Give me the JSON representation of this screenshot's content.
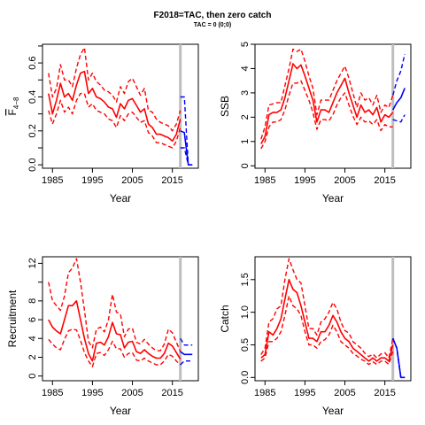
{
  "figure": {
    "title": "F2018=TAC, then zero catch",
    "subtitle": "TAC = 0 (0;0)"
  },
  "colors": {
    "history": "#ff0000",
    "forecast": "#0000ff",
    "marker": "#bebebe"
  },
  "chart_data": [
    {
      "id": "fbar",
      "type": "line",
      "title": "",
      "xlabel": "Year",
      "ylabel_main": "F",
      "ylabel_sub": "4−8",
      "xlim": [
        1982.5,
        2021.5
      ],
      "ylim": [
        -0.02,
        0.71
      ],
      "xticks": [
        1985,
        1995,
        2005,
        2015
      ],
      "yticks": [
        0,
        0.2,
        0.4,
        0.6
      ],
      "ytick_labels": [
        "0.0",
        "0.2",
        "0.4",
        "0.6"
      ],
      "yminor": [
        0.1,
        0.3,
        0.5,
        0.7
      ],
      "vline": 2017,
      "x": [
        1984,
        1985,
        1986,
        1987,
        1988,
        1989,
        1990,
        1991,
        1992,
        1993,
        1994,
        1995,
        1996,
        1997,
        1998,
        1999,
        2000,
        2001,
        2002,
        2003,
        2004,
        2005,
        2006,
        2007,
        2008,
        2009,
        2010,
        2011,
        2012,
        2013,
        2014,
        2015,
        2016,
        2017
      ],
      "series": [
        {
          "role": "estimate",
          "style": "solid",
          "values": [
            0.42,
            0.3,
            0.38,
            0.48,
            0.4,
            0.42,
            0.38,
            0.47,
            0.54,
            0.55,
            0.42,
            0.45,
            0.4,
            0.39,
            0.37,
            0.34,
            0.33,
            0.28,
            0.36,
            0.33,
            0.38,
            0.39,
            0.35,
            0.31,
            0.33,
            0.24,
            0.22,
            0.18,
            0.18,
            0.17,
            0.16,
            0.14,
            0.18,
            0.27
          ]
        },
        {
          "role": "upper",
          "style": "dashed",
          "values": [
            0.54,
            0.4,
            0.45,
            0.59,
            0.5,
            0.5,
            0.46,
            0.57,
            0.65,
            0.69,
            0.5,
            0.54,
            0.49,
            0.47,
            0.44,
            0.43,
            0.41,
            0.37,
            0.46,
            0.42,
            0.49,
            0.51,
            0.46,
            0.41,
            0.45,
            0.32,
            0.31,
            0.27,
            0.25,
            0.24,
            0.23,
            0.2,
            0.24,
            0.32
          ]
        },
        {
          "role": "lower",
          "style": "dashed",
          "values": [
            0.32,
            0.24,
            0.3,
            0.38,
            0.31,
            0.34,
            0.3,
            0.38,
            0.42,
            0.42,
            0.34,
            0.36,
            0.32,
            0.31,
            0.3,
            0.27,
            0.26,
            0.22,
            0.29,
            0.26,
            0.3,
            0.31,
            0.28,
            0.25,
            0.26,
            0.19,
            0.17,
            0.13,
            0.13,
            0.12,
            0.11,
            0.1,
            0.14,
            0.22
          ]
        }
      ],
      "forecast": {
        "x": [
          2017,
          2018,
          2019,
          2020
        ],
        "series": [
          {
            "role": "estimate",
            "style": "solid",
            "values": [
              0.2,
              0.19,
              0,
              0
            ]
          },
          {
            "role": "upper",
            "style": "dashed",
            "values": [
              0.4,
              0.4,
              0,
              0
            ]
          },
          {
            "role": "lower",
            "style": "dashed",
            "values": [
              0.1,
              0.1,
              0,
              0
            ]
          }
        ]
      }
    },
    {
      "id": "ssb",
      "type": "line",
      "title": "",
      "xlabel": "Year",
      "ylabel_main": "SSB",
      "ylabel_sub": "",
      "xlim": [
        1982.5,
        2021.5
      ],
      "ylim": [
        -0.1,
        5.0
      ],
      "xticks": [
        1985,
        1995,
        2005,
        2015
      ],
      "yticks": [
        0,
        1,
        2,
        3,
        4,
        5
      ],
      "ytick_labels": [
        "0",
        "1",
        "2",
        "3",
        "4",
        "5"
      ],
      "yminor": [],
      "vline": 2017,
      "x": [
        1984,
        1985,
        1986,
        1987,
        1988,
        1989,
        1990,
        1991,
        1992,
        1993,
        1994,
        1995,
        1996,
        1997,
        1998,
        1999,
        2000,
        2001,
        2002,
        2003,
        2004,
        2005,
        2006,
        2007,
        2008,
        2009,
        2010,
        2011,
        2012,
        2013,
        2014,
        2015,
        2016,
        2017
      ],
      "series": [
        {
          "role": "estimate",
          "style": "solid",
          "values": [
            0.9,
            1.2,
            2.1,
            2.2,
            2.2,
            2.3,
            2.8,
            3.5,
            4.2,
            4.0,
            4.15,
            3.7,
            3.2,
            2.7,
            1.8,
            2.3,
            2.3,
            2.2,
            2.6,
            3.0,
            3.3,
            3.6,
            3.0,
            2.5,
            2.0,
            2.5,
            2.2,
            2.3,
            2.1,
            2.4,
            1.8,
            2.1,
            2.0,
            2.2
          ]
        },
        {
          "role": "upper",
          "style": "dashed",
          "values": [
            1.1,
            1.6,
            2.5,
            2.55,
            2.6,
            2.6,
            3.3,
            4.0,
            4.8,
            4.7,
            4.8,
            4.3,
            3.7,
            3.2,
            2.1,
            2.7,
            2.7,
            2.7,
            3.1,
            3.5,
            3.8,
            4.1,
            3.6,
            3.0,
            2.4,
            3.0,
            2.7,
            2.8,
            2.5,
            2.9,
            2.2,
            2.5,
            2.4,
            2.9
          ]
        },
        {
          "role": "lower",
          "style": "dashed",
          "values": [
            0.7,
            1.0,
            1.6,
            1.8,
            1.8,
            1.9,
            2.3,
            2.9,
            3.4,
            3.4,
            3.5,
            3.1,
            2.7,
            2.2,
            1.5,
            1.9,
            1.9,
            1.85,
            2.1,
            2.5,
            2.8,
            3.0,
            2.5,
            2.05,
            1.7,
            2.0,
            1.8,
            1.85,
            1.7,
            1.9,
            1.45,
            1.7,
            1.6,
            1.6
          ]
        }
      ],
      "forecast": {
        "x": [
          2017,
          2018,
          2019,
          2020
        ],
        "series": [
          {
            "role": "estimate",
            "style": "solid",
            "values": [
              2.3,
              2.6,
              2.8,
              3.2
            ]
          },
          {
            "role": "upper",
            "style": "dashed",
            "values": [
              2.9,
              3.5,
              3.9,
              4.6
            ]
          },
          {
            "role": "lower",
            "style": "dashed",
            "values": [
              1.9,
              1.85,
              1.8,
              2.1
            ]
          }
        ]
      }
    },
    {
      "id": "recruitment",
      "type": "line",
      "title": "",
      "xlabel": "Year",
      "ylabel_main": "Recruitment",
      "ylabel_sub": "",
      "xlim": [
        1982.5,
        2021.5
      ],
      "ylim": [
        -0.5,
        12.7
      ],
      "xticks": [
        1985,
        1995,
        2005,
        2015
      ],
      "yticks": [
        0,
        2,
        4,
        6,
        8,
        12
      ],
      "ytick_labels": [
        "0",
        "2",
        "4",
        "6",
        "8",
        "12"
      ],
      "yminor": [
        10
      ],
      "vline": 2017,
      "x": [
        1984,
        1985,
        1986,
        1987,
        1988,
        1989,
        1990,
        1991,
        1992,
        1993,
        1994,
        1995,
        1996,
        1997,
        1998,
        1999,
        2000,
        2001,
        2002,
        2003,
        2004,
        2005,
        2006,
        2007,
        2008,
        2009,
        2010,
        2011,
        2012,
        2013,
        2014,
        2015,
        2016,
        2017
      ],
      "series": [
        {
          "role": "estimate",
          "style": "solid",
          "values": [
            6.0,
            5.2,
            4.8,
            4.5,
            6.0,
            7.5,
            7.5,
            8.0,
            6.0,
            4.0,
            2.4,
            1.6,
            3.5,
            3.6,
            3.3,
            4.2,
            5.7,
            4.5,
            4.4,
            3.0,
            3.6,
            3.7,
            2.6,
            2.4,
            2.8,
            2.4,
            2.1,
            1.9,
            1.9,
            2.4,
            3.5,
            3.2,
            2.5,
            1.8
          ]
        },
        {
          "role": "upper",
          "style": "dashed",
          "values": [
            10.0,
            8.0,
            7.5,
            7.0,
            8.5,
            11.0,
            11.5,
            12.5,
            10.0,
            7.0,
            3.7,
            3.0,
            5.0,
            5.2,
            4.7,
            6.0,
            8.7,
            6.8,
            6.6,
            4.2,
            5.0,
            5.1,
            3.6,
            3.4,
            3.9,
            3.4,
            3.0,
            2.7,
            2.7,
            3.4,
            5.0,
            4.6,
            3.6,
            2.6
          ]
        },
        {
          "role": "lower",
          "style": "dashed",
          "values": [
            3.9,
            3.4,
            3.0,
            2.8,
            3.9,
            4.8,
            5.0,
            4.9,
            3.8,
            2.5,
            1.6,
            1.0,
            2.4,
            2.5,
            2.2,
            2.8,
            3.7,
            2.9,
            2.9,
            2.0,
            2.4,
            2.5,
            1.7,
            1.6,
            1.9,
            1.6,
            1.4,
            1.2,
            1.2,
            1.6,
            2.3,
            2.1,
            1.6,
            1.2
          ]
        }
      ],
      "forecast": {
        "x": [
          2017,
          2018,
          2019,
          2020
        ],
        "series": [
          {
            "role": "estimate",
            "style": "solid",
            "values": [
              2.6,
              2.3,
              2.3,
              2.3
            ]
          },
          {
            "role": "upper",
            "style": "dashed",
            "values": [
              4.0,
              3.3,
              3.3,
              3.3
            ]
          },
          {
            "role": "lower",
            "style": "dashed",
            "values": [
              1.2,
              1.6,
              1.6,
              1.6
            ]
          }
        ]
      }
    },
    {
      "id": "catch",
      "type": "line",
      "title": "",
      "xlabel": "Year",
      "ylabel_main": "Catch",
      "ylabel_sub": "",
      "xlim": [
        1982.5,
        2021.5
      ],
      "ylim": [
        -0.05,
        1.85
      ],
      "xticks": [
        1985,
        1995,
        2005,
        2015
      ],
      "yticks": [
        0,
        0.5,
        1.0,
        1.5
      ],
      "ytick_labels": [
        "0.0",
        "0.5",
        "1.0",
        "1.5"
      ],
      "yminor": [],
      "vline": 2017,
      "x": [
        1984,
        1985,
        1986,
        1987,
        1988,
        1989,
        1990,
        1991,
        1992,
        1993,
        1994,
        1995,
        1996,
        1997,
        1998,
        1999,
        2000,
        2001,
        2002,
        2003,
        2004,
        2005,
        2006,
        2007,
        2008,
        2009,
        2010,
        2011,
        2012,
        2013,
        2014,
        2015,
        2016,
        2017
      ],
      "series": [
        {
          "role": "estimate",
          "style": "solid",
          "values": [
            0.3,
            0.35,
            0.7,
            0.65,
            0.75,
            0.9,
            1.2,
            1.5,
            1.35,
            1.3,
            1.1,
            0.85,
            0.6,
            0.6,
            0.55,
            0.7,
            0.7,
            0.8,
            0.95,
            0.85,
            0.7,
            0.6,
            0.55,
            0.45,
            0.4,
            0.35,
            0.3,
            0.25,
            0.3,
            0.25,
            0.3,
            0.3,
            0.25,
            0.5
          ]
        },
        {
          "role": "upper",
          "style": "dashed",
          "values": [
            0.35,
            0.45,
            0.85,
            0.9,
            1.05,
            1.1,
            1.5,
            1.82,
            1.65,
            1.5,
            1.45,
            1.1,
            0.75,
            0.75,
            0.65,
            0.85,
            0.9,
            1.0,
            1.15,
            1.05,
            0.85,
            0.72,
            0.68,
            0.55,
            0.5,
            0.45,
            0.37,
            0.32,
            0.36,
            0.3,
            0.36,
            0.38,
            0.3,
            0.6
          ]
        },
        {
          "role": "lower",
          "style": "dashed",
          "values": [
            0.25,
            0.3,
            0.55,
            0.55,
            0.6,
            0.7,
            0.95,
            1.25,
            1.1,
            1.05,
            0.95,
            0.7,
            0.5,
            0.5,
            0.45,
            0.55,
            0.58,
            0.65,
            0.8,
            0.7,
            0.55,
            0.5,
            0.45,
            0.37,
            0.33,
            0.28,
            0.25,
            0.2,
            0.24,
            0.2,
            0.25,
            0.25,
            0.2,
            0.4
          ]
        }
      ],
      "forecast": {
        "x": [
          2017,
          2018,
          2019,
          2020
        ],
        "series": [
          {
            "role": "estimate",
            "style": "solid",
            "values": [
              0.6,
              0.45,
              0,
              0
            ]
          },
          {
            "role": "upper",
            "style": "dashed",
            "values": [
              0.6,
              0.45,
              0,
              0
            ]
          },
          {
            "role": "lower",
            "style": "dashed",
            "values": [
              0.6,
              0.45,
              0,
              0
            ]
          }
        ]
      }
    }
  ]
}
